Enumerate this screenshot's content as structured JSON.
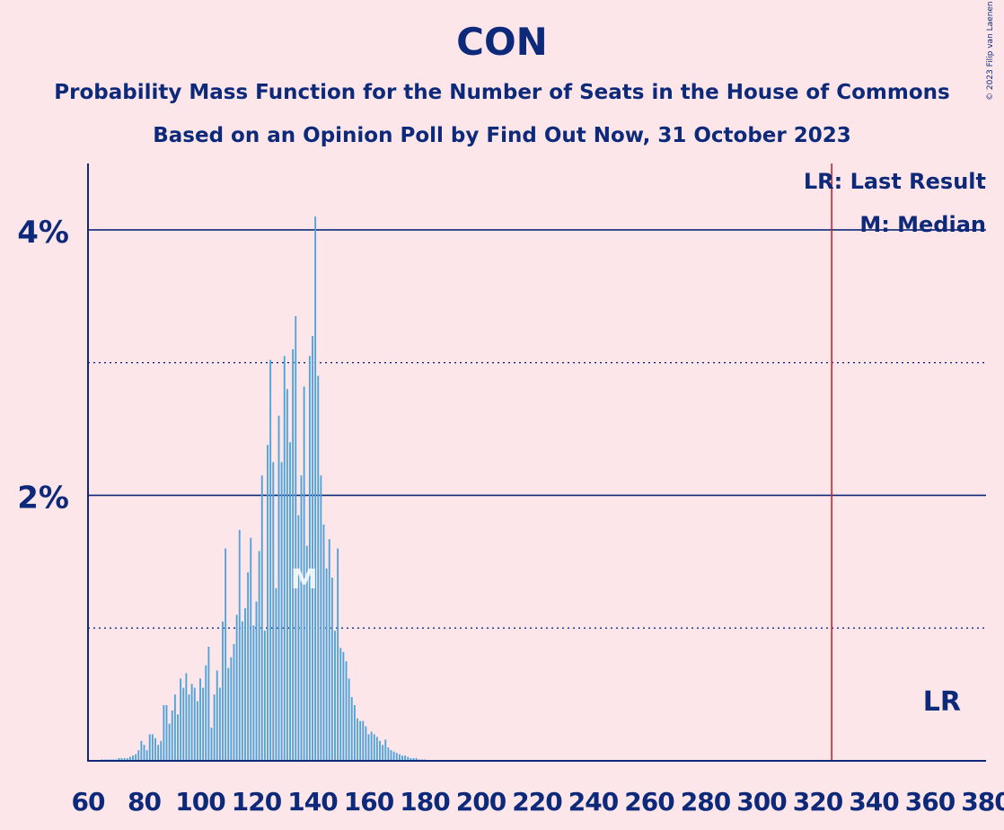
{
  "title": "CON",
  "subtitle1": "Probability Mass Function for the Number of Seats in the House of Commons",
  "subtitle2": "Based on an Opinion Poll by Find Out Now, 31 October 2023",
  "copyright": "© 2023 Filip van Laenen",
  "colors": {
    "background": "#fde6ea",
    "text": "#0d2a7a",
    "bars": "#4fa3d8",
    "last_result_line": "#d0202e",
    "axis": "#0d2a7a"
  },
  "chart_data": {
    "type": "bar",
    "title": "CON",
    "xlim": [
      60,
      380
    ],
    "ylim": [
      0,
      4.5
    ],
    "y_ticks": [
      {
        "value": 1,
        "label": "",
        "style": "dotted"
      },
      {
        "value": 2,
        "label": "2%",
        "style": "solid"
      },
      {
        "value": 3,
        "label": "",
        "style": "dotted"
      },
      {
        "value": 4,
        "label": "4%",
        "style": "solid"
      }
    ],
    "x_ticks": [
      60,
      80,
      100,
      120,
      140,
      160,
      180,
      200,
      220,
      240,
      260,
      280,
      300,
      320,
      340,
      360,
      380
    ],
    "last_result": {
      "seat": 325,
      "label": "LR"
    },
    "median": {
      "seat": 137,
      "label": "M"
    },
    "legend": [
      "LR: Last Result",
      "M: Median"
    ],
    "legend_position": "top-right",
    "seats": [
      65,
      66,
      67,
      68,
      69,
      70,
      71,
      72,
      73,
      74,
      75,
      76,
      77,
      78,
      79,
      80,
      81,
      82,
      83,
      84,
      85,
      86,
      87,
      88,
      89,
      90,
      91,
      92,
      93,
      94,
      95,
      96,
      97,
      98,
      99,
      100,
      101,
      102,
      103,
      104,
      105,
      106,
      107,
      108,
      109,
      110,
      111,
      112,
      113,
      114,
      115,
      116,
      117,
      118,
      119,
      120,
      121,
      122,
      123,
      124,
      125,
      126,
      127,
      128,
      129,
      130,
      131,
      132,
      133,
      134,
      135,
      136,
      137,
      138,
      139,
      140,
      141,
      142,
      143,
      144,
      145,
      146,
      147,
      148,
      149,
      150,
      151,
      152,
      153,
      154,
      155,
      156,
      157,
      158,
      159,
      160,
      161,
      162,
      163,
      164,
      165,
      166,
      167,
      168,
      169,
      170,
      171,
      172,
      173,
      174,
      175,
      176,
      177,
      178,
      179,
      180
    ],
    "values": [
      0.01,
      0.01,
      0.01,
      0.01,
      0.01,
      0.01,
      0.02,
      0.02,
      0.02,
      0.02,
      0.03,
      0.04,
      0.05,
      0.08,
      0.15,
      0.12,
      0.08,
      0.2,
      0.2,
      0.17,
      0.12,
      0.15,
      0.42,
      0.42,
      0.28,
      0.38,
      0.5,
      0.35,
      0.62,
      0.55,
      0.66,
      0.5,
      0.58,
      0.55,
      0.45,
      0.62,
      0.55,
      0.72,
      0.86,
      0.25,
      0.5,
      0.68,
      0.55,
      1.05,
      1.6,
      0.7,
      0.78,
      0.88,
      1.1,
      1.74,
      1.05,
      1.15,
      1.42,
      1.68,
      1.02,
      1.2,
      1.58,
      2.15,
      0.98,
      2.38,
      3.02,
      2.25,
      1.3,
      2.6,
      2.25,
      3.05,
      2.8,
      2.4,
      3.1,
      3.35,
      1.85,
      2.15,
      2.82,
      1.62,
      3.05,
      3.2,
      4.1,
      2.9,
      2.15,
      1.78,
      1.45,
      1.67,
      1.38,
      0.98,
      1.6,
      0.85,
      0.82,
      0.75,
      0.62,
      0.48,
      0.42,
      0.32,
      0.3,
      0.3,
      0.26,
      0.2,
      0.22,
      0.2,
      0.18,
      0.15,
      0.12,
      0.16,
      0.1,
      0.08,
      0.07,
      0.06,
      0.05,
      0.04,
      0.04,
      0.03,
      0.02,
      0.02,
      0.02,
      0.01,
      0.01,
      0.01
    ]
  }
}
